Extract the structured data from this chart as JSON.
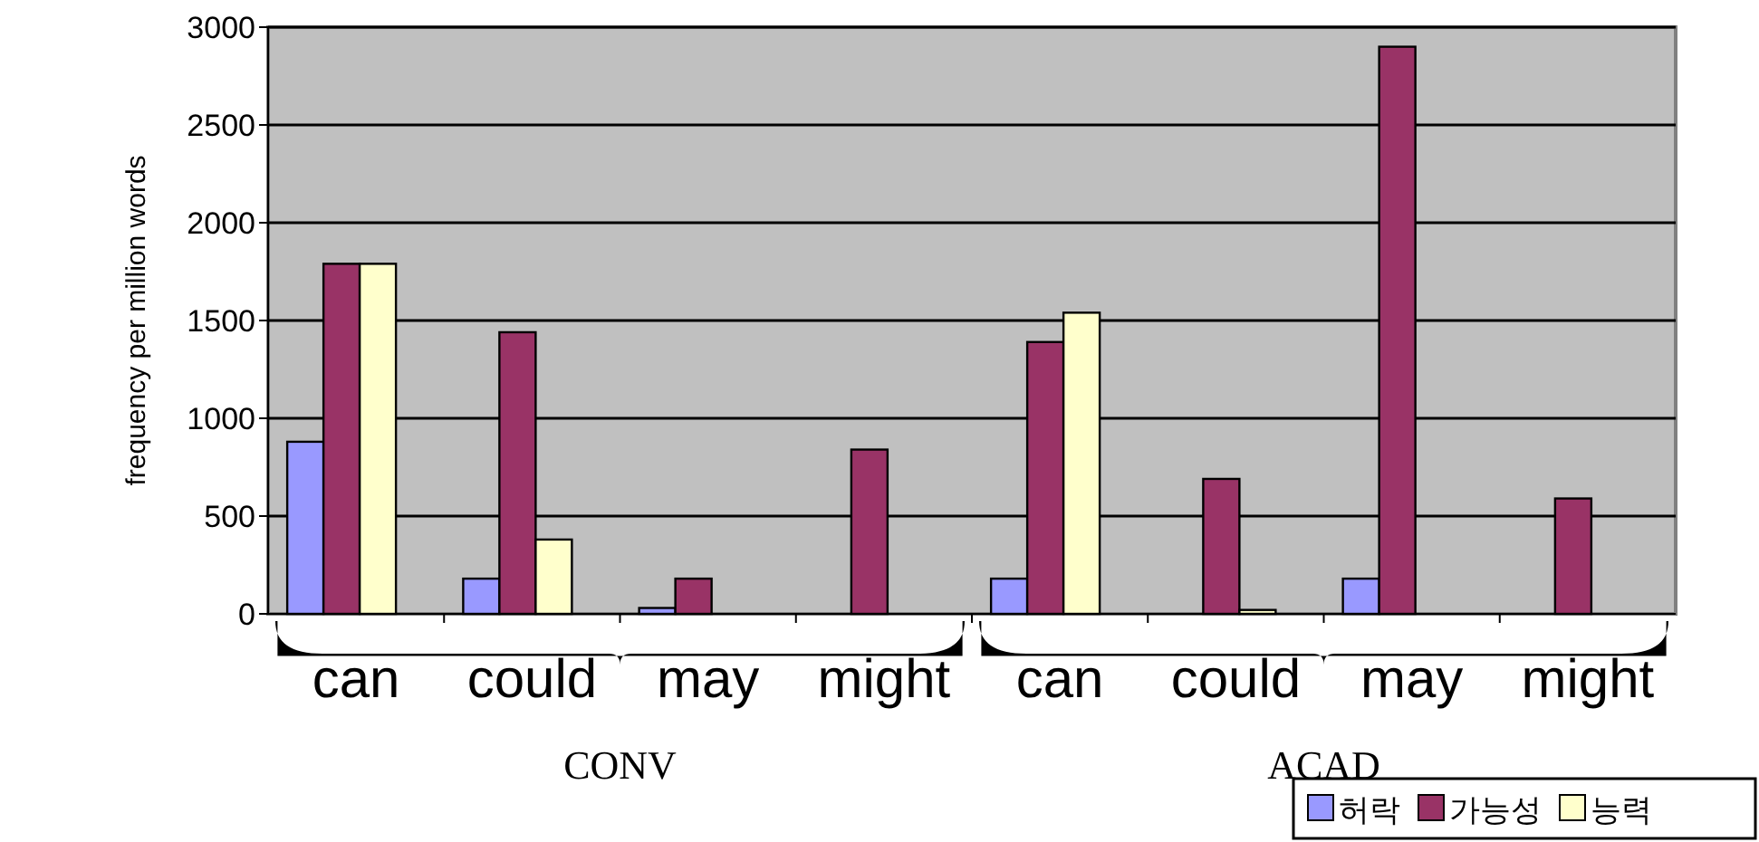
{
  "chart_data": {
    "type": "bar",
    "ylabel": "frequency per million words",
    "categories": [
      "can",
      "could",
      "may",
      "might",
      "can",
      "could",
      "may",
      "might"
    ],
    "series": [
      {
        "name": "허락",
        "color": "#9999ff",
        "values": [
          880,
          180,
          30,
          0,
          180,
          0,
          180,
          0
        ]
      },
      {
        "name": "가능성",
        "color": "#993366",
        "values": [
          1790,
          1440,
          180,
          840,
          1390,
          690,
          2900,
          590
        ]
      },
      {
        "name": "능력",
        "color": "#ffffcc",
        "values": [
          1790,
          380,
          0,
          0,
          1540,
          20,
          0,
          0
        ]
      }
    ],
    "ylim": [
      0,
      3000
    ],
    "yticks": [
      0,
      500,
      1000,
      1500,
      2000,
      2500,
      3000
    ],
    "grid": "y",
    "legend": "bottom right",
    "annotations": [
      "CONV",
      "ACAD"
    ]
  }
}
